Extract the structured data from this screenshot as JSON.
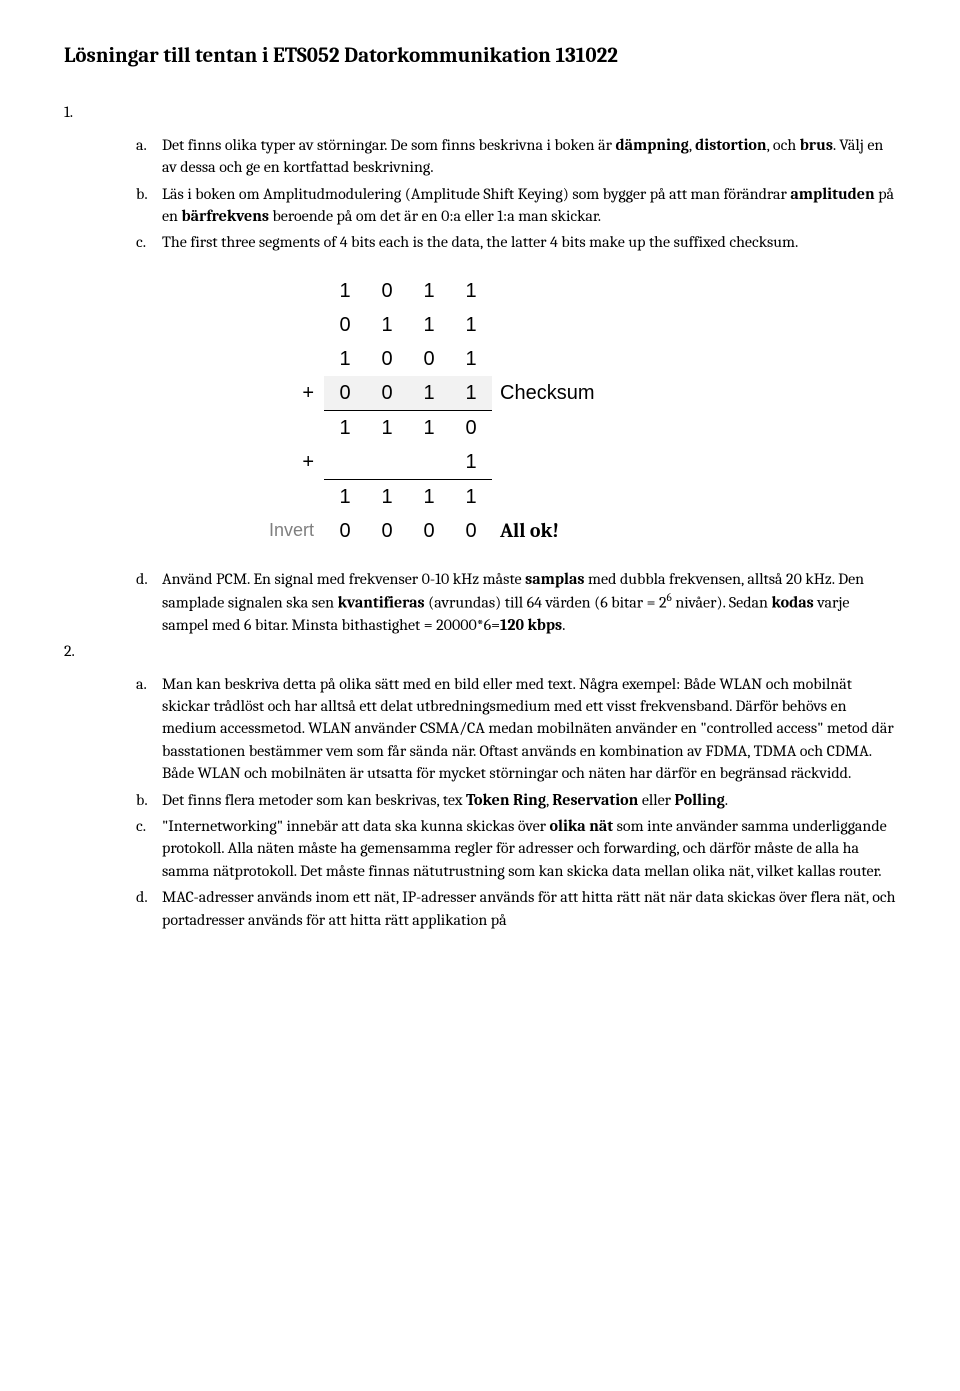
{
  "title": "Lösningar till tentan i ETS052 Datorkommunikation 131022",
  "q1": {
    "num": "1.",
    "a": {
      "letter": "a.",
      "parts": [
        {
          "t": "Det finns olika typer av störningar. De som finns beskrivna i boken är "
        },
        {
          "t": "dämpning",
          "bold": true
        },
        {
          "t": ", "
        },
        {
          "t": "distortion",
          "bold": true
        },
        {
          "t": ", och "
        },
        {
          "t": "brus",
          "bold": true
        },
        {
          "t": ". Välj en av dessa och ge en kortfattad beskrivning."
        }
      ]
    },
    "b": {
      "letter": "b.",
      "parts": [
        {
          "t": "Läs i boken om Amplitudmodulering (Amplitude Shift Keying) som bygger på att man förändrar "
        },
        {
          "t": "amplituden",
          "bold": true
        },
        {
          "t": " på en "
        },
        {
          "t": "bärfrekvens",
          "bold": true
        },
        {
          "t": " beroende på om det är en 0:a eller 1:a man skickar."
        }
      ]
    },
    "c": {
      "letter": "c.",
      "text": "The first three segments of 4 bits each is the data, the latter 4 bits make up the suffixed checksum."
    },
    "checksum": {
      "rows": [
        {
          "left": "",
          "cells": [
            "1",
            "0",
            "1",
            "1"
          ],
          "right": "",
          "topline": false,
          "shaded": false
        },
        {
          "left": "",
          "cells": [
            "0",
            "1",
            "1",
            "1"
          ],
          "right": "",
          "topline": false,
          "shaded": false
        },
        {
          "left": "",
          "cells": [
            "1",
            "0",
            "0",
            "1"
          ],
          "right": "",
          "topline": false,
          "shaded": false
        },
        {
          "left": "+",
          "cells": [
            "0",
            "0",
            "1",
            "1"
          ],
          "right": "Checksum",
          "topline": false,
          "shaded": true
        },
        {
          "left": "",
          "cells": [
            "1",
            "1",
            "1",
            "0"
          ],
          "right": "",
          "topline": true,
          "shaded": false
        },
        {
          "left": "+",
          "cells": [
            "",
            "",
            "",
            "1"
          ],
          "right": "",
          "topline": false,
          "shaded": false
        },
        {
          "left": "",
          "cells": [
            "1",
            "1",
            "1",
            "1"
          ],
          "right": "",
          "topline": true,
          "shaded": false
        },
        {
          "left": "Invert",
          "cells": [
            "0",
            "0",
            "0",
            "0"
          ],
          "right": "All ok!",
          "topline": false,
          "shaded": false,
          "invert": true,
          "allok": true
        }
      ]
    },
    "d": {
      "letter": "d.",
      "parts": [
        {
          "t": "Använd PCM. En signal med frekvenser 0-10 kHz måste "
        },
        {
          "t": "samplas",
          "bold": true
        },
        {
          "t": " med dubbla frekvensen, alltså 20 kHz. Den samplade signalen ska sen "
        },
        {
          "t": "kvantifieras",
          "bold": true
        },
        {
          "t": " (avrundas) till 64 värden (6 bitar = 2"
        },
        {
          "t": "6",
          "sup": true
        },
        {
          "t": " nivåer). Sedan "
        },
        {
          "t": "kodas",
          "bold": true
        },
        {
          "t": " varje sampel med 6 bitar. Minsta bithastighet = 20000*6="
        },
        {
          "t": "120 kbps",
          "bold": true
        },
        {
          "t": "."
        }
      ]
    }
  },
  "q2": {
    "num": "2.",
    "a": {
      "letter": "a.",
      "text": "Man kan beskriva detta på olika sätt med en bild eller med text. Några exempel: Både WLAN och mobilnät skickar trådlöst och har alltså ett delat utbredningsmedium med ett visst frekvensband. Därför behövs en medium accessmetod. WLAN använder CSMA/CA medan mobilnäten använder en \"controlled access\" metod där basstationen bestämmer vem som får sända när. Oftast används en kombination av FDMA, TDMA och CDMA. Både WLAN och mobilnäten är utsatta för mycket störningar och näten har därför en begränsad räckvidd."
    },
    "b": {
      "letter": "b.",
      "parts": [
        {
          "t": "Det finns flera metoder som kan beskrivas, tex "
        },
        {
          "t": "Token Ring",
          "bold": true
        },
        {
          "t": ", "
        },
        {
          "t": "Reservation",
          "bold": true
        },
        {
          "t": " eller "
        },
        {
          "t": "Polling",
          "bold": true
        },
        {
          "t": "."
        }
      ]
    },
    "c": {
      "letter": "c.",
      "parts": [
        {
          "t": "\"Internetworking\" innebär att data ska kunna skickas över "
        },
        {
          "t": "olika nät",
          "bold": true
        },
        {
          "t": " som inte använder samma underliggande protokoll. Alla näten måste ha gemensamma regler för adresser och forwarding, och därför måste de alla ha samma nätprotokoll. Det måste finnas nätutrustning som kan skicka data mellan olika nät, vilket kallas router."
        }
      ]
    },
    "d": {
      "letter": "d.",
      "text": "MAC-adresser används inom ett nät, IP-adresser används för att hitta rätt nät när data skickas över flera nät, och portadresser används för att hitta rätt applikation på"
    }
  }
}
